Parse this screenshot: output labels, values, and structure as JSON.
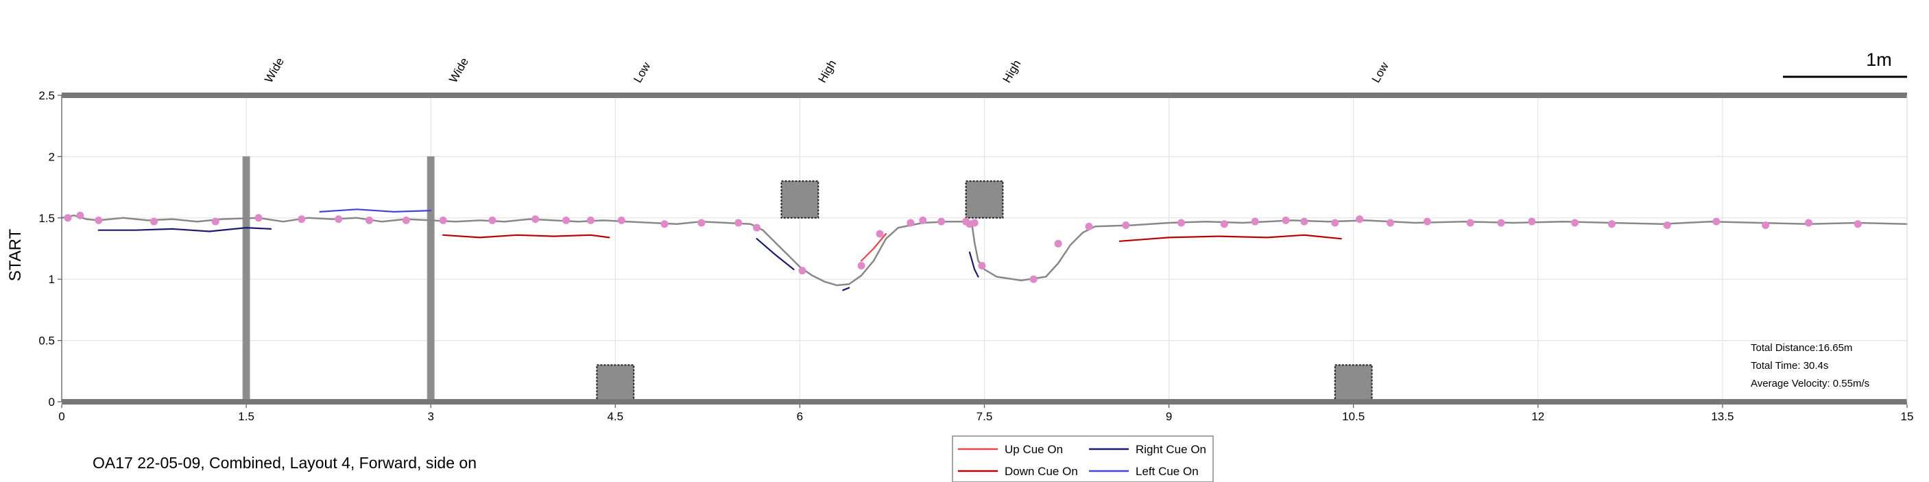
{
  "chart_data": {
    "type": "line",
    "ylabel": "START",
    "xlim": [
      0,
      15
    ],
    "ylim": [
      0,
      2.5
    ],
    "x_ticks": [
      "0",
      "1.5",
      "3",
      "4.5",
      "6",
      "7.5",
      "9",
      "10.5",
      "12",
      "13.5",
      "15"
    ],
    "y_ticks": [
      "0",
      "0.5",
      "1",
      "1.5",
      "2",
      "2.5"
    ],
    "grid": true,
    "scale_bar": {
      "label": "1m"
    },
    "caption": "OA17 22-05-09, Combined, Layout 4, Forward, side on",
    "stats": [
      "Total Distance:16.65m",
      "Total Time: 30.4s",
      "Average Velocity: 0.55m/s"
    ],
    "obstacle_labels": [
      {
        "x": 1.5,
        "label": "Wide"
      },
      {
        "x": 3.0,
        "label": "Wide"
      },
      {
        "x": 4.5,
        "label": "Low"
      },
      {
        "x": 6.0,
        "label": "High"
      },
      {
        "x": 7.5,
        "label": "High"
      },
      {
        "x": 10.5,
        "label": "Low"
      }
    ],
    "obstacles": [
      {
        "type": "wall",
        "x": 1.5,
        "y": [
          0,
          2
        ]
      },
      {
        "type": "wall",
        "x": 3.0,
        "y": [
          0,
          2
        ]
      },
      {
        "type": "box",
        "x": [
          4.35,
          4.65
        ],
        "y": [
          0,
          0.3
        ]
      },
      {
        "type": "box",
        "x": [
          5.85,
          6.15
        ],
        "y": [
          1.5,
          1.8
        ]
      },
      {
        "type": "box",
        "x": [
          7.35,
          7.65
        ],
        "y": [
          1.5,
          1.8
        ]
      },
      {
        "type": "box",
        "x": [
          10.35,
          10.65
        ],
        "y": [
          0,
          0.3
        ]
      }
    ],
    "legend": {
      "position": "bottom-center",
      "entries": [
        {
          "label": "Up Cue On",
          "color": "#ee4444"
        },
        {
          "label": "Right Cue On",
          "color": "#1a1a6e"
        },
        {
          "label": "Down Cue On",
          "color": "#bb0000"
        },
        {
          "label": "Left Cue On",
          "color": "#4444dd"
        }
      ]
    },
    "series": [
      {
        "color": "#888888",
        "points": [
          [
            0,
            1.5
          ],
          [
            0.1,
            1.52
          ],
          [
            0.2,
            1.49
          ],
          [
            0.3,
            1.48
          ],
          [
            0.5,
            1.5
          ],
          [
            0.7,
            1.48
          ],
          [
            0.9,
            1.49
          ],
          [
            1.1,
            1.47
          ],
          [
            1.3,
            1.49
          ],
          [
            1.6,
            1.5
          ],
          [
            1.8,
            1.47
          ],
          [
            2.0,
            1.5
          ],
          [
            2.2,
            1.49
          ],
          [
            2.4,
            1.5
          ],
          [
            2.6,
            1.47
          ],
          [
            2.8,
            1.49
          ],
          [
            3.0,
            1.48
          ],
          [
            3.2,
            1.47
          ],
          [
            3.4,
            1.48
          ],
          [
            3.6,
            1.47
          ],
          [
            3.8,
            1.49
          ],
          [
            4.0,
            1.48
          ],
          [
            4.2,
            1.47
          ],
          [
            4.4,
            1.48
          ],
          [
            4.6,
            1.47
          ],
          [
            4.8,
            1.46
          ],
          [
            5.0,
            1.45
          ],
          [
            5.2,
            1.47
          ],
          [
            5.4,
            1.46
          ],
          [
            5.6,
            1.45
          ],
          [
            5.7,
            1.4
          ],
          [
            5.8,
            1.3
          ],
          [
            5.9,
            1.2
          ],
          [
            6.0,
            1.1
          ],
          [
            6.1,
            1.03
          ],
          [
            6.2,
            0.98
          ],
          [
            6.3,
            0.95
          ],
          [
            6.4,
            0.96
          ],
          [
            6.5,
            1.03
          ],
          [
            6.6,
            1.15
          ],
          [
            6.7,
            1.33
          ],
          [
            6.8,
            1.42
          ],
          [
            7.0,
            1.46
          ],
          [
            7.2,
            1.47
          ],
          [
            7.35,
            1.47
          ],
          [
            7.4,
            1.44
          ],
          [
            7.42,
            1.3
          ],
          [
            7.45,
            1.15
          ],
          [
            7.5,
            1.08
          ],
          [
            7.6,
            1.02
          ],
          [
            7.8,
            0.99
          ],
          [
            8.0,
            1.02
          ],
          [
            8.1,
            1.13
          ],
          [
            8.2,
            1.28
          ],
          [
            8.3,
            1.38
          ],
          [
            8.4,
            1.43
          ],
          [
            8.7,
            1.44
          ],
          [
            9.0,
            1.46
          ],
          [
            9.3,
            1.47
          ],
          [
            9.6,
            1.46
          ],
          [
            10.0,
            1.48
          ],
          [
            10.3,
            1.47
          ],
          [
            10.6,
            1.48
          ],
          [
            11.0,
            1.46
          ],
          [
            11.4,
            1.47
          ],
          [
            11.8,
            1.46
          ],
          [
            12.2,
            1.47
          ],
          [
            12.6,
            1.46
          ],
          [
            13.0,
            1.45
          ],
          [
            13.4,
            1.47
          ],
          [
            13.8,
            1.46
          ],
          [
            14.2,
            1.45
          ],
          [
            14.6,
            1.46
          ],
          [
            15.0,
            1.45
          ]
        ]
      },
      {
        "color": "#1a1a6e",
        "points": [
          [
            0.3,
            1.4
          ],
          [
            0.6,
            1.4
          ],
          [
            0.9,
            1.41
          ],
          [
            1.2,
            1.39
          ],
          [
            1.5,
            1.42
          ],
          [
            1.7,
            1.41
          ]
        ]
      },
      {
        "color": "#4444dd",
        "points": [
          [
            2.1,
            1.55
          ],
          [
            2.4,
            1.57
          ],
          [
            2.7,
            1.55
          ],
          [
            3.0,
            1.56
          ]
        ]
      },
      {
        "color": "#bb0000",
        "points": [
          [
            3.1,
            1.36
          ],
          [
            3.4,
            1.34
          ],
          [
            3.7,
            1.36
          ],
          [
            4.0,
            1.35
          ],
          [
            4.3,
            1.36
          ],
          [
            4.45,
            1.34
          ]
        ]
      },
      {
        "color": "#1a1a6e",
        "points": [
          [
            5.65,
            1.33
          ],
          [
            5.8,
            1.2
          ],
          [
            5.95,
            1.08
          ]
        ]
      },
      {
        "color": "#1a1a6e",
        "points": [
          [
            6.35,
            0.91
          ],
          [
            6.4,
            0.93
          ]
        ]
      },
      {
        "color": "#ee4444",
        "points": [
          [
            6.5,
            1.15
          ],
          [
            6.6,
            1.25
          ],
          [
            6.7,
            1.37
          ]
        ]
      },
      {
        "color": "#1a1a6e",
        "points": [
          [
            7.38,
            1.22
          ],
          [
            7.42,
            1.08
          ],
          [
            7.45,
            1.02
          ]
        ]
      },
      {
        "color": "#bb0000",
        "points": [
          [
            8.6,
            1.31
          ],
          [
            9.0,
            1.34
          ],
          [
            9.4,
            1.35
          ],
          [
            9.8,
            1.34
          ],
          [
            10.1,
            1.36
          ],
          [
            10.4,
            1.33
          ]
        ]
      }
    ],
    "markers": {
      "color": "#e088c8",
      "points": [
        [
          0.05,
          1.5
        ],
        [
          0.15,
          1.52
        ],
        [
          0.3,
          1.48
        ],
        [
          0.75,
          1.47
        ],
        [
          1.25,
          1.47
        ],
        [
          1.6,
          1.5
        ],
        [
          1.95,
          1.49
        ],
        [
          2.25,
          1.49
        ],
        [
          2.5,
          1.48
        ],
        [
          2.8,
          1.48
        ],
        [
          3.1,
          1.48
        ],
        [
          3.5,
          1.48
        ],
        [
          3.85,
          1.49
        ],
        [
          4.1,
          1.48
        ],
        [
          4.3,
          1.48
        ],
        [
          4.55,
          1.48
        ],
        [
          4.9,
          1.45
        ],
        [
          5.2,
          1.46
        ],
        [
          5.5,
          1.46
        ],
        [
          5.65,
          1.42
        ],
        [
          6.02,
          1.07
        ],
        [
          6.5,
          1.11
        ],
        [
          6.65,
          1.37
        ],
        [
          6.9,
          1.46
        ],
        [
          7.0,
          1.48
        ],
        [
          7.15,
          1.47
        ],
        [
          7.35,
          1.47
        ],
        [
          7.38,
          1.45
        ],
        [
          7.42,
          1.46
        ],
        [
          7.48,
          1.11
        ],
        [
          7.9,
          1.0
        ],
        [
          8.1,
          1.29
        ],
        [
          8.35,
          1.43
        ],
        [
          8.65,
          1.44
        ],
        [
          9.1,
          1.46
        ],
        [
          9.45,
          1.45
        ],
        [
          9.7,
          1.47
        ],
        [
          9.95,
          1.48
        ],
        [
          10.1,
          1.47
        ],
        [
          10.35,
          1.46
        ],
        [
          10.55,
          1.49
        ],
        [
          10.8,
          1.46
        ],
        [
          11.1,
          1.47
        ],
        [
          11.45,
          1.46
        ],
        [
          11.7,
          1.46
        ],
        [
          11.95,
          1.47
        ],
        [
          12.3,
          1.46
        ],
        [
          12.6,
          1.45
        ],
        [
          13.05,
          1.44
        ],
        [
          13.45,
          1.47
        ],
        [
          13.85,
          1.44
        ],
        [
          14.2,
          1.46
        ],
        [
          14.6,
          1.45
        ]
      ]
    }
  }
}
